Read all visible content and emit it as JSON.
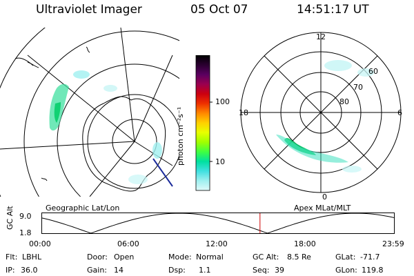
{
  "header": {
    "instrument": "Ultraviolet Imager",
    "date": "05 Oct 07",
    "time": "14:51:17 UT"
  },
  "geo_panel": {
    "label": "Geographic Lat/Lon"
  },
  "apex_panel": {
    "label": "Apex MLat/MLT",
    "mlt_labels": {
      "top": "12",
      "left": "18",
      "right": "6",
      "bottom": "0"
    },
    "lat_labels": [
      "60",
      "70",
      "80"
    ]
  },
  "colorbar": {
    "unit": "photon cm⁻²s⁻¹",
    "tick_labels": [
      "100",
      "10"
    ],
    "colors": [
      "#000000",
      "#2a0030",
      "#5a0060",
      "#9a0050",
      "#cc0010",
      "#ee3000",
      "#ff8800",
      "#ffd000",
      "#e8ff00",
      "#a0ff00",
      "#40ff40",
      "#00e0a0",
      "#40e0e0",
      "#a0f0f0",
      "#e0fafa"
    ]
  },
  "timeline": {
    "ylabel": "GC Alt",
    "ymax": "9.0",
    "ymin": "1.8",
    "ticks": [
      "00:00",
      "06:00",
      "12:00",
      "18:00",
      "23:59"
    ],
    "current_marker_hour": 14.85
  },
  "info": {
    "flt_label": "Flt:",
    "flt_value": "LBHL",
    "ip_label": "IP:",
    "ip_value": "36.0",
    "door_label": "Door:",
    "door_value": "Open",
    "gain_label": "Gain:",
    "gain_value": "14",
    "mode_label": "Mode:",
    "mode_value": "Normal",
    "dsp_label": "Dsp:",
    "dsp_value": "1.1",
    "gcalt_label": "GC Alt:",
    "gcalt_value": "8.5 Re",
    "seq_label": "Seq:",
    "seq_value": "39",
    "glat_label": "GLat:",
    "glat_value": "-71.7",
    "glon_label": "GLon:",
    "glon_value": "119.8"
  }
}
